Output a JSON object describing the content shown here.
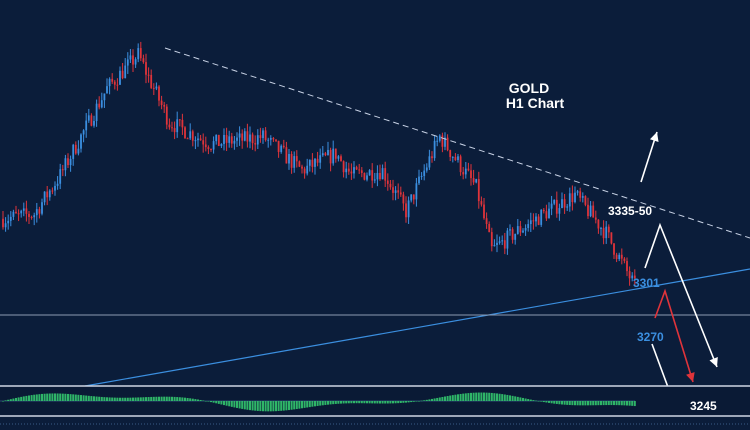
{
  "chart_data": {
    "type": "candlestick",
    "title": "GOLD",
    "subtitle": "H1 Chart",
    "instrument": "GOLD",
    "timeframe": "H1",
    "y_unit": "price",
    "approx_price_range": [
      3245,
      3390
    ],
    "price_path_approx": [
      {
        "bar": 0,
        "price": 3318
      },
      {
        "bar": 12,
        "price": 3320
      },
      {
        "bar": 22,
        "price": 3336
      },
      {
        "bar": 30,
        "price": 3352
      },
      {
        "bar": 40,
        "price": 3372
      },
      {
        "bar": 52,
        "price": 3386
      },
      {
        "bar": 64,
        "price": 3358
      },
      {
        "bar": 80,
        "price": 3349
      },
      {
        "bar": 100,
        "price": 3352
      },
      {
        "bar": 115,
        "price": 3338
      },
      {
        "bar": 128,
        "price": 3345
      },
      {
        "bar": 134,
        "price": 3336
      },
      {
        "bar": 146,
        "price": 3338
      },
      {
        "bar": 155,
        "price": 3321
      },
      {
        "bar": 168,
        "price": 3352
      },
      {
        "bar": 182,
        "price": 3331
      },
      {
        "bar": 188,
        "price": 3305
      },
      {
        "bar": 198,
        "price": 3313
      },
      {
        "bar": 208,
        "price": 3320
      },
      {
        "bar": 220,
        "price": 3328
      },
      {
        "bar": 232,
        "price": 3312
      },
      {
        "bar": 243,
        "price": 3290
      }
    ],
    "trendlines": [
      {
        "style": "dashed",
        "color": "#c9d3e6",
        "direction": "descending resistance"
      },
      {
        "style": "solid",
        "color": "#3b8fe0",
        "direction": "ascending support"
      }
    ],
    "horizontal_line": {
      "color": "#8d9bb3"
    },
    "level_labels": [
      {
        "text": "3335-50",
        "color": "#ffffff"
      },
      {
        "text": "3301",
        "color": "#3b8fe0"
      },
      {
        "text": "3270",
        "color": "#3b8fe0"
      },
      {
        "text": "3245",
        "color": "#ffffff"
      }
    ],
    "scenario_arrows": [
      {
        "color": "#ffffff",
        "from": "3270",
        "to": "3335-50",
        "direction": "up"
      },
      {
        "color": "#ffffff",
        "from": "3335-50",
        "to": "3245",
        "direction": "down"
      },
      {
        "color": "#e0343a",
        "from": "3301",
        "to": "3245",
        "direction": "down"
      },
      {
        "color": "#ffffff",
        "from": "3270",
        "to": "3245",
        "direction": "down"
      }
    ],
    "oscillator": {
      "type": "histogram",
      "color": "#33c66e"
    },
    "colors": {
      "background": "#0b1d3a",
      "bull": "#3b8fe0",
      "bear": "#e0343a",
      "text": "#ffffff"
    }
  }
}
